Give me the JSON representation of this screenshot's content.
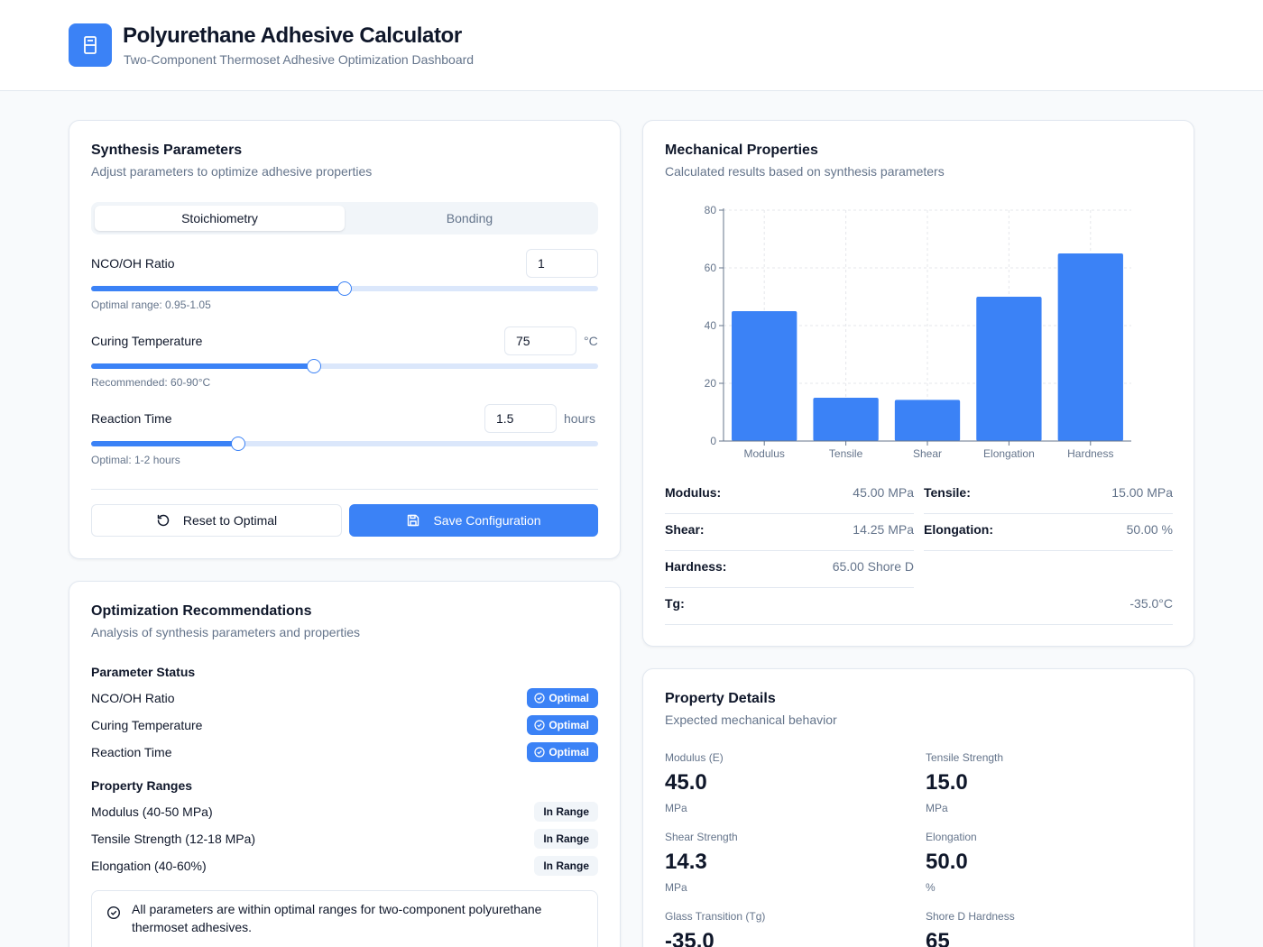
{
  "header": {
    "title": "Polyurethane Adhesive Calculator",
    "subtitle": "Two-Component Thermoset Adhesive Optimization Dashboard",
    "logo_icon": "flask-icon",
    "accent": "#3b82f6"
  },
  "synthesis": {
    "title": "Synthesis Parameters",
    "subtitle": "Adjust parameters to optimize adhesive properties",
    "tabs": [
      {
        "label": "Stoichiometry",
        "active": true
      },
      {
        "label": "Bonding",
        "active": false
      }
    ],
    "params": [
      {
        "label": "NCO/OH Ratio",
        "value": "1",
        "unit": "",
        "hint": "Optimal range: 0.95-1.05",
        "slider_fraction": 0.5
      },
      {
        "label": "Curing Temperature",
        "value": "75",
        "unit": "°C",
        "hint": "Recommended: 60-90°C",
        "slider_fraction": 0.44
      },
      {
        "label": "Reaction Time",
        "value": "1.5",
        "unit": "hours",
        "hint": "Optimal: 1-2 hours",
        "slider_fraction": 0.29
      }
    ],
    "reset_label": "Reset to Optimal",
    "save_label": "Save Configuration"
  },
  "optimization": {
    "title": "Optimization Recommendations",
    "subtitle": "Analysis of synthesis parameters and properties",
    "param_status_heading": "Parameter Status",
    "param_status": [
      {
        "label": "NCO/OH Ratio",
        "badge": "Optimal"
      },
      {
        "label": "Curing Temperature",
        "badge": "Optimal"
      },
      {
        "label": "Reaction Time",
        "badge": "Optimal"
      }
    ],
    "property_ranges_heading": "Property Ranges",
    "property_ranges": [
      {
        "label": "Modulus (40-50 MPa)",
        "badge": "In Range"
      },
      {
        "label": "Tensile Strength (12-18 MPa)",
        "badge": "In Range"
      },
      {
        "label": "Elongation (40-60%)",
        "badge": "In Range"
      }
    ],
    "alert_text": "All parameters are within optimal ranges for two-component polyurethane thermoset adhesives."
  },
  "mechanical": {
    "title": "Mechanical Properties",
    "subtitle": "Calculated results based on synthesis parameters",
    "properties": [
      {
        "key": "Modulus:",
        "value": "45.00 MPa"
      },
      {
        "key": "Tensile:",
        "value": "15.00 MPa"
      },
      {
        "key": "Shear:",
        "value": "14.25 MPa"
      },
      {
        "key": "Elongation:",
        "value": "50.00 %"
      },
      {
        "key": "Hardness:",
        "value": "65.00 Shore D"
      },
      {
        "key": "Tg:",
        "value": "-35.0°C"
      }
    ]
  },
  "chart_data": {
    "type": "bar",
    "categories": [
      "Modulus",
      "Tensile",
      "Shear",
      "Elongation",
      "Hardness"
    ],
    "values": [
      45,
      15,
      14.25,
      50,
      65
    ],
    "ylim": [
      0,
      80
    ],
    "yticks": [
      0,
      20,
      40,
      60,
      80
    ],
    "grid": true,
    "color": "#3b82f6"
  },
  "details": {
    "title": "Property Details",
    "subtitle": "Expected mechanical behavior",
    "items": [
      {
        "label": "Modulus (E)",
        "value": "45.0",
        "unit": "MPa"
      },
      {
        "label": "Tensile Strength",
        "value": "15.0",
        "unit": "MPa"
      },
      {
        "label": "Shear Strength",
        "value": "14.3",
        "unit": "MPa"
      },
      {
        "label": "Elongation",
        "value": "50.0",
        "unit": "%"
      },
      {
        "label": "Glass Transition (Tg)",
        "value": "-35.0",
        "unit": ""
      },
      {
        "label": "Shore D Hardness",
        "value": "65",
        "unit": ""
      }
    ]
  }
}
